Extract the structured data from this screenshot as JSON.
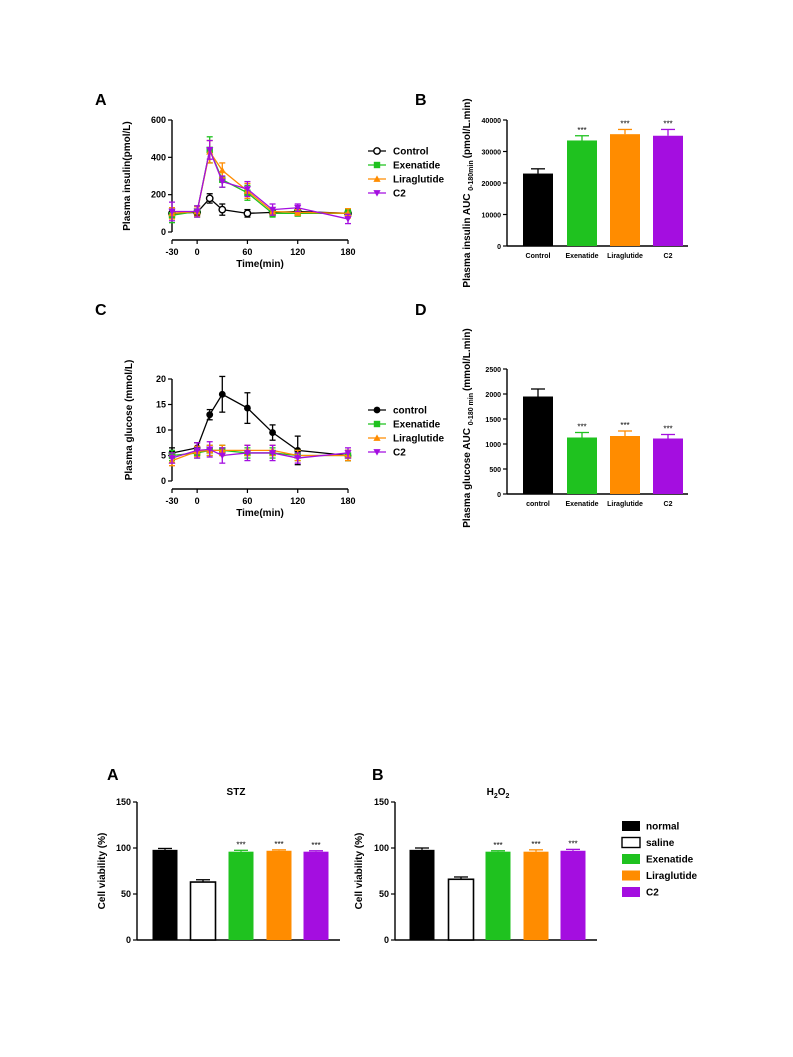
{
  "colors": {
    "control": "#000000",
    "exenatide": "#1fc21f",
    "liraglutide": "#ff8c00",
    "c2": "#a40ee0",
    "saline": "#ffffff"
  },
  "chart_data": [
    {
      "id": "insulin-line",
      "panel": "A",
      "type": "line",
      "xlabel": "Time(min)",
      "ylabel": "Plasma insulin(pmol/L)",
      "xlim": [
        -30,
        180
      ],
      "ylim": [
        0,
        600
      ],
      "xticks": [
        -30,
        0,
        60,
        120,
        180
      ],
      "yticks": [
        0,
        200,
        400,
        600
      ],
      "legend_position": "right",
      "series": [
        {
          "name": "Control",
          "key": "control",
          "marker": "circle-open",
          "x": [
            -30,
            0,
            15,
            30,
            60,
            90,
            120,
            180
          ],
          "y": [
            100,
            105,
            180,
            120,
            100,
            105,
            110,
            100
          ],
          "err": [
            20,
            15,
            25,
            30,
            20,
            15,
            10,
            15
          ]
        },
        {
          "name": "Exenatide",
          "key": "exenatide",
          "marker": "square",
          "x": [
            -30,
            0,
            15,
            30,
            60,
            90,
            120,
            180
          ],
          "y": [
            90,
            110,
            440,
            280,
            210,
            100,
            100,
            100
          ],
          "err": [
            40,
            30,
            70,
            40,
            40,
            20,
            15,
            20
          ]
        },
        {
          "name": "Liraglutide",
          "key": "liraglutide",
          "marker": "triangle-up",
          "x": [
            -30,
            0,
            15,
            30,
            60,
            90,
            120,
            180
          ],
          "y": [
            100,
            110,
            430,
            330,
            220,
            110,
            105,
            100
          ],
          "err": [
            30,
            25,
            60,
            40,
            40,
            20,
            15,
            25
          ]
        },
        {
          "name": "C2",
          "key": "c2",
          "marker": "triangle-down",
          "x": [
            -30,
            0,
            15,
            30,
            60,
            90,
            120,
            180
          ],
          "y": [
            110,
            110,
            440,
            270,
            230,
            120,
            130,
            70
          ],
          "err": [
            50,
            30,
            50,
            30,
            40,
            30,
            20,
            25
          ]
        }
      ]
    },
    {
      "id": "insulin-auc",
      "panel": "B",
      "type": "bar",
      "ylabel": "Plasma insulin AUC",
      "ylabel_sub": "0-180min",
      "ylabel_unit": "(pmol/L.min)",
      "ylim": [
        0,
        40000
      ],
      "yticks": [
        0,
        10000,
        20000,
        30000,
        40000
      ],
      "categories": [
        "Control",
        "Exenatide",
        "Liraglutide",
        "C2"
      ],
      "keys": [
        "control",
        "exenatide",
        "liraglutide",
        "c2"
      ],
      "values": [
        23000,
        33500,
        35500,
        35000
      ],
      "err": [
        1500,
        1500,
        1500,
        2000
      ],
      "sig": [
        "",
        "***",
        "***",
        "***"
      ]
    },
    {
      "id": "glucose-line",
      "panel": "C",
      "type": "line",
      "xlabel": "Time(min)",
      "ylabel": "Plasma glucose (mmol/L)",
      "xlim": [
        -30,
        180
      ],
      "ylim": [
        0,
        20
      ],
      "xticks": [
        -30,
        0,
        60,
        120,
        180
      ],
      "yticks": [
        0,
        5,
        10,
        15,
        20
      ],
      "legend_position": "right",
      "series": [
        {
          "name": "control",
          "key": "control",
          "marker": "circle",
          "x": [
            -30,
            0,
            15,
            30,
            60,
            90,
            120,
            180
          ],
          "y": [
            5.5,
            6.5,
            13,
            17,
            14.3,
            9.5,
            6,
            5
          ],
          "err": [
            1,
            1,
            1,
            3.5,
            3,
            1.5,
            2.8,
            1
          ]
        },
        {
          "name": "Exenatide",
          "key": "exenatide",
          "marker": "square",
          "x": [
            -30,
            0,
            15,
            30,
            60,
            90,
            120,
            180
          ],
          "y": [
            5,
            5.5,
            6,
            6,
            5.5,
            5.5,
            5,
            5
          ],
          "err": [
            1,
            1,
            1,
            1,
            1,
            1,
            1,
            1
          ]
        },
        {
          "name": "Liraglutide",
          "key": "liraglutide",
          "marker": "triangle-up",
          "x": [
            -30,
            0,
            15,
            30,
            60,
            90,
            120,
            180
          ],
          "y": [
            4,
            5.8,
            6,
            6,
            6,
            6,
            5,
            5
          ],
          "err": [
            1,
            1,
            1,
            1,
            1,
            1,
            1,
            1
          ]
        },
        {
          "name": "C2",
          "key": "c2",
          "marker": "triangle-down",
          "x": [
            -30,
            0,
            15,
            30,
            60,
            90,
            120,
            180
          ],
          "y": [
            4.5,
            6,
            6.2,
            5,
            5.5,
            5.5,
            4.5,
            5.5
          ],
          "err": [
            1,
            1.5,
            1.5,
            1.5,
            1.5,
            1.5,
            1,
            1
          ]
        }
      ]
    },
    {
      "id": "glucose-auc",
      "panel": "D",
      "type": "bar",
      "ylabel": "Plasma glucose AUC",
      "ylabel_sub": "0-180 min",
      "ylabel_unit": "(mmol/L.min)",
      "ylim": [
        0,
        2500
      ],
      "yticks": [
        0,
        500,
        1000,
        1500,
        2000,
        2500
      ],
      "categories": [
        "control",
        "Exenatide",
        "Liraglutide",
        "C2"
      ],
      "keys": [
        "control",
        "exenatide",
        "liraglutide",
        "c2"
      ],
      "values": [
        1950,
        1130,
        1160,
        1110
      ],
      "err": [
        150,
        100,
        100,
        80
      ],
      "sig": [
        "",
        "***",
        "***",
        "***"
      ]
    },
    {
      "id": "viability-stz",
      "panel": "A",
      "type": "bar",
      "title": "STZ",
      "ylabel": "Cell viability (%)",
      "ylim": [
        0,
        150
      ],
      "yticks": [
        0,
        50,
        100,
        150
      ],
      "keys": [
        "normal",
        "saline",
        "exenatide",
        "liraglutide",
        "c2"
      ],
      "values": [
        98,
        63,
        96,
        97,
        96
      ],
      "err": [
        1.5,
        2.5,
        1.5,
        1,
        1
      ],
      "sig": [
        "",
        "",
        "***",
        "***",
        "***"
      ]
    },
    {
      "id": "viability-h2o2",
      "panel": "B",
      "type": "bar",
      "title_main": "H",
      "title_sub": "2",
      "title_end": "O",
      "title_sub2": "2",
      "ylabel": "Cell viability (%)",
      "ylim": [
        0,
        150
      ],
      "yticks": [
        0,
        50,
        100,
        150
      ],
      "keys": [
        "normal",
        "saline",
        "exenatide",
        "liraglutide",
        "c2"
      ],
      "values": [
        98,
        66,
        96,
        96,
        97
      ],
      "err": [
        2,
        2.5,
        1,
        2,
        1.5
      ],
      "sig": [
        "",
        "",
        "***",
        "***",
        "***"
      ],
      "legend_position": "right",
      "legend": [
        {
          "name": "normal",
          "key": "normal"
        },
        {
          "name": "saline",
          "key": "saline"
        },
        {
          "name": "Exenatide",
          "key": "exenatide"
        },
        {
          "name": "Liraglutide",
          "key": "liraglutide"
        },
        {
          "name": "C2",
          "key": "c2"
        }
      ]
    }
  ]
}
